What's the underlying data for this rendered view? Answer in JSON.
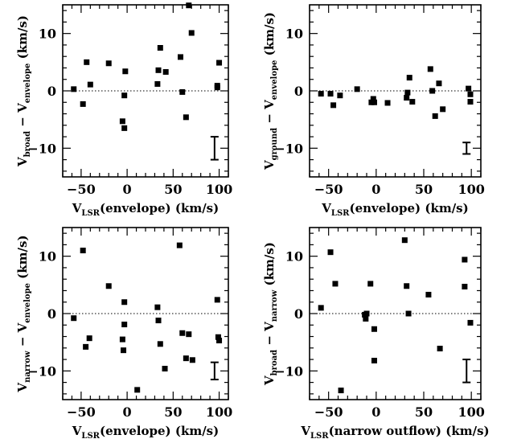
{
  "chart_data": [
    {
      "type": "scatter",
      "xlabel": {
        "main": "V",
        "sub": "LSR",
        "rest": "(envelope)  (km/s)"
      },
      "ylabel": {
        "parts": [
          {
            "t": "V",
            "s": "broad"
          },
          {
            "t": "  −  V",
            "s": "envelope"
          },
          {
            "t": "  (km/s)",
            "s": ""
          }
        ]
      },
      "xlim": [
        -70,
        110
      ],
      "ylim": [
        -15,
        15
      ],
      "xticks": [
        -50,
        0,
        50,
        100
      ],
      "yticks": [
        -10,
        0,
        10
      ],
      "zero_line": true,
      "error_bar": {
        "x": 95,
        "y": -10,
        "half_height": 2
      },
      "points": [
        {
          "x": -58,
          "y": 0.3
        },
        {
          "x": -48,
          "y": -2.3
        },
        {
          "x": -44,
          "y": 5.0
        },
        {
          "x": -40,
          "y": 1.1
        },
        {
          "x": -20,
          "y": 4.8
        },
        {
          "x": -5,
          "y": -5.3
        },
        {
          "x": -3,
          "y": -0.8
        },
        {
          "x": -3,
          "y": -6.5
        },
        {
          "x": -2,
          "y": 3.4
        },
        {
          "x": 33,
          "y": 1.2
        },
        {
          "x": 34,
          "y": 3.6
        },
        {
          "x": 36,
          "y": 7.5
        },
        {
          "x": 42,
          "y": 3.3
        },
        {
          "x": 58,
          "y": 5.9
        },
        {
          "x": 60,
          "y": -0.2
        },
        {
          "x": 64,
          "y": -4.6
        },
        {
          "x": 67,
          "y": 14.9
        },
        {
          "x": 70,
          "y": 10.1
        },
        {
          "x": 98,
          "y": 0.9
        },
        {
          "x": 98,
          "y": 0.6
        },
        {
          "x": 100,
          "y": 4.9
        }
      ]
    },
    {
      "type": "scatter",
      "xlabel": {
        "main": "V",
        "sub": "LSR",
        "rest": "(envelope)  (km/s)"
      },
      "ylabel": {
        "parts": [
          {
            "t": "V",
            "s": "ground"
          },
          {
            "t": "  −  V",
            "s": "envelope"
          },
          {
            "t": "  (km/s)",
            "s": ""
          }
        ]
      },
      "xlim": [
        -70,
        110
      ],
      "ylim": [
        -15,
        15
      ],
      "xticks": [
        -50,
        0,
        50,
        100
      ],
      "yticks": [
        -10,
        0,
        10
      ],
      "zero_line": true,
      "error_bar": {
        "x": 95,
        "y": -10,
        "half_height": 1
      },
      "points": [
        {
          "x": -58,
          "y": -0.5
        },
        {
          "x": -48,
          "y": -0.5
        },
        {
          "x": -45,
          "y": -2.5
        },
        {
          "x": -38,
          "y": -0.8
        },
        {
          "x": -20,
          "y": 0.3
        },
        {
          "x": -5,
          "y": -2.0
        },
        {
          "x": -3,
          "y": -1.4
        },
        {
          "x": -2,
          "y": -2.0
        },
        {
          "x": 12,
          "y": -2.1
        },
        {
          "x": 32,
          "y": -1.2
        },
        {
          "x": 33,
          "y": -0.3
        },
        {
          "x": 35,
          "y": 2.3
        },
        {
          "x": 38,
          "y": -1.9
        },
        {
          "x": 57,
          "y": 3.8
        },
        {
          "x": 59,
          "y": 0.0
        },
        {
          "x": 62,
          "y": -4.4
        },
        {
          "x": 66,
          "y": 1.3
        },
        {
          "x": 70,
          "y": -3.2
        },
        {
          "x": 97,
          "y": 0.4
        },
        {
          "x": 99,
          "y": -0.6
        },
        {
          "x": 99,
          "y": -1.9
        }
      ]
    },
    {
      "type": "scatter",
      "xlabel": {
        "main": "V",
        "sub": "LSR",
        "rest": "(envelope)  (km/s)"
      },
      "ylabel": {
        "parts": [
          {
            "t": "V",
            "s": "narrow"
          },
          {
            "t": "  −  V",
            "s": "envelope"
          },
          {
            "t": "  (km/s)",
            "s": ""
          }
        ]
      },
      "xlim": [
        -70,
        110
      ],
      "ylim": [
        -15,
        15
      ],
      "xticks": [
        -50,
        0,
        50,
        100
      ],
      "yticks": [
        -10,
        0,
        10
      ],
      "zero_line": true,
      "error_bar": {
        "x": 95,
        "y": -10,
        "half_height": 1.5
      },
      "points": [
        {
          "x": -58,
          "y": -0.8
        },
        {
          "x": -48,
          "y": 11.0
        },
        {
          "x": -45,
          "y": -5.8
        },
        {
          "x": -41,
          "y": -4.3
        },
        {
          "x": -20,
          "y": 4.8
        },
        {
          "x": -5,
          "y": -4.5
        },
        {
          "x": -4,
          "y": -6.4
        },
        {
          "x": -3,
          "y": 2.0
        },
        {
          "x": -3,
          "y": -1.9
        },
        {
          "x": 11,
          "y": -13.3
        },
        {
          "x": 33,
          "y": 1.1
        },
        {
          "x": 34,
          "y": -1.2
        },
        {
          "x": 36,
          "y": -5.3
        },
        {
          "x": 41,
          "y": -9.6
        },
        {
          "x": 57,
          "y": 11.9
        },
        {
          "x": 60,
          "y": -3.4
        },
        {
          "x": 64,
          "y": -7.8
        },
        {
          "x": 67,
          "y": -3.6
        },
        {
          "x": 71,
          "y": -8.1
        },
        {
          "x": 98,
          "y": 2.4
        },
        {
          "x": 99,
          "y": -4.1
        },
        {
          "x": 100,
          "y": -4.7
        }
      ]
    },
    {
      "type": "scatter",
      "xlabel": {
        "main": "V",
        "sub": "LSR",
        "rest": "(narrow outflow)  (km/s)"
      },
      "ylabel": {
        "parts": [
          {
            "t": "V",
            "s": "broad"
          },
          {
            "t": "  −  V",
            "s": "narrow"
          },
          {
            "t": "  (km/s)",
            "s": ""
          }
        ]
      },
      "xlim": [
        -70,
        110
      ],
      "ylim": [
        -15,
        15
      ],
      "xticks": [
        -50,
        0,
        50,
        100
      ],
      "yticks": [
        -10,
        0,
        10
      ],
      "zero_line": true,
      "error_bar": {
        "x": 95,
        "y": -10,
        "half_height": 2
      },
      "points": [
        {
          "x": -58,
          "y": 1.0
        },
        {
          "x": -48,
          "y": 10.7
        },
        {
          "x": -43,
          "y": 5.2
        },
        {
          "x": -37,
          "y": -13.4
        },
        {
          "x": -12,
          "y": -0.2
        },
        {
          "x": -11,
          "y": -0.9
        },
        {
          "x": -10,
          "y": 0.0
        },
        {
          "x": -6,
          "y": 5.2
        },
        {
          "x": -2,
          "y": -8.2
        },
        {
          "x": -2,
          "y": -2.7
        },
        {
          "x": 30,
          "y": 12.8
        },
        {
          "x": 32,
          "y": 4.8
        },
        {
          "x": 34,
          "y": 0.0
        },
        {
          "x": 55,
          "y": 3.3
        },
        {
          "x": 67,
          "y": -6.1
        },
        {
          "x": 93,
          "y": 9.4
        },
        {
          "x": 93,
          "y": 4.7
        },
        {
          "x": 99,
          "y": -1.6
        }
      ]
    }
  ]
}
